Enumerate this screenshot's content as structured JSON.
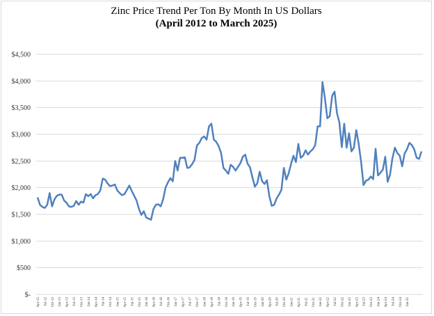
{
  "chart_data": {
    "type": "line",
    "title": "Zinc Price Trend Per Ton By Month In US Dollars",
    "subtitle": "(April 2012 to March 2025)",
    "xlabel": "",
    "ylabel": "",
    "ylim": [
      0,
      4500
    ],
    "yticks": [
      0,
      500,
      1000,
      1500,
      2000,
      2500,
      3000,
      3500,
      4000,
      4500
    ],
    "ytick_labels": [
      "$-",
      "$500",
      "$1,000",
      "$1,500",
      "$2,000",
      "$2,500",
      "$3,000",
      "$3,500",
      "$4,000",
      "$4,500"
    ],
    "grid": true,
    "legend": "none",
    "line_color": "#4f81bd",
    "x_tick_labels": [
      "Apr-12",
      "Jul-12",
      "Oct-12",
      "Jan-13",
      "Apr-13",
      "Jul-13",
      "Oct-13",
      "Jan-14",
      "Apr-14",
      "Jul-14",
      "Oct-14",
      "Jan-15",
      "Apr-15",
      "Jul-15",
      "Oct-15",
      "Jan-16",
      "Apr-16",
      "Jul-16",
      "Oct-16",
      "Jan-17",
      "Apr-17",
      "Jul-17",
      "Oct-17",
      "Jan-18",
      "Apr-18",
      "Jul-18",
      "Oct-18",
      "Jan-19",
      "Apr-19",
      "Jul-19",
      "Oct-19",
      "Jan-20",
      "Apr-20",
      "Jul-20",
      "Oct-20",
      "Jan-21",
      "Apr-21",
      "Jul-21",
      "Oct-21",
      "Jan-22",
      "Apr-22",
      "Jul-22",
      "Oct-22",
      "Jan-23",
      "Apr-23",
      "Jul-23",
      "Oct-23",
      "Jan-24",
      "Apr-24",
      "Jul-24",
      "Oct-24",
      "Jan-25"
    ],
    "series": [
      {
        "values": [
          1820,
          1680,
          1640,
          1620,
          1680,
          1900,
          1650,
          1780,
          1850,
          1870,
          1870,
          1760,
          1720,
          1650,
          1640,
          1660,
          1750,
          1680,
          1740,
          1720,
          1880,
          1840,
          1880,
          1800,
          1860,
          1880,
          1950,
          2170,
          2150,
          2080,
          2030,
          2040,
          2060,
          1950,
          1900,
          1860,
          1880,
          1960,
          2040,
          1940,
          1850,
          1760,
          1600,
          1490,
          1560,
          1440,
          1420,
          1400,
          1600,
          1680,
          1690,
          1650,
          1780,
          2000,
          2100,
          2180,
          2120,
          2500,
          2320,
          2560,
          2560,
          2570,
          2370,
          2380,
          2440,
          2520,
          2790,
          2840,
          2930,
          2960,
          2900,
          3150,
          3200,
          2900,
          2860,
          2780,
          2650,
          2370,
          2320,
          2260,
          2430,
          2390,
          2320,
          2390,
          2460,
          2580,
          2620,
          2450,
          2380,
          2190,
          2020,
          2080,
          2300,
          2120,
          2070,
          2140,
          1840,
          1660,
          1680,
          1800,
          1870,
          1960,
          2370,
          2150,
          2270,
          2450,
          2600,
          2480,
          2820,
          2560,
          2600,
          2700,
          2620,
          2680,
          2720,
          2800,
          3150,
          3150,
          3980,
          3680,
          3300,
          3340,
          3720,
          3800,
          3400,
          3220,
          2760,
          3200,
          2750,
          3020,
          2680,
          2750,
          3080,
          2820,
          2480,
          2050,
          2130,
          2150,
          2210,
          2160,
          2730,
          2230,
          2280,
          2340,
          2580,
          2110,
          2250,
          2560,
          2750,
          2650,
          2600,
          2400,
          2640,
          2720,
          2840,
          2800,
          2720,
          2560,
          2540,
          2680
        ]
      }
    ]
  }
}
